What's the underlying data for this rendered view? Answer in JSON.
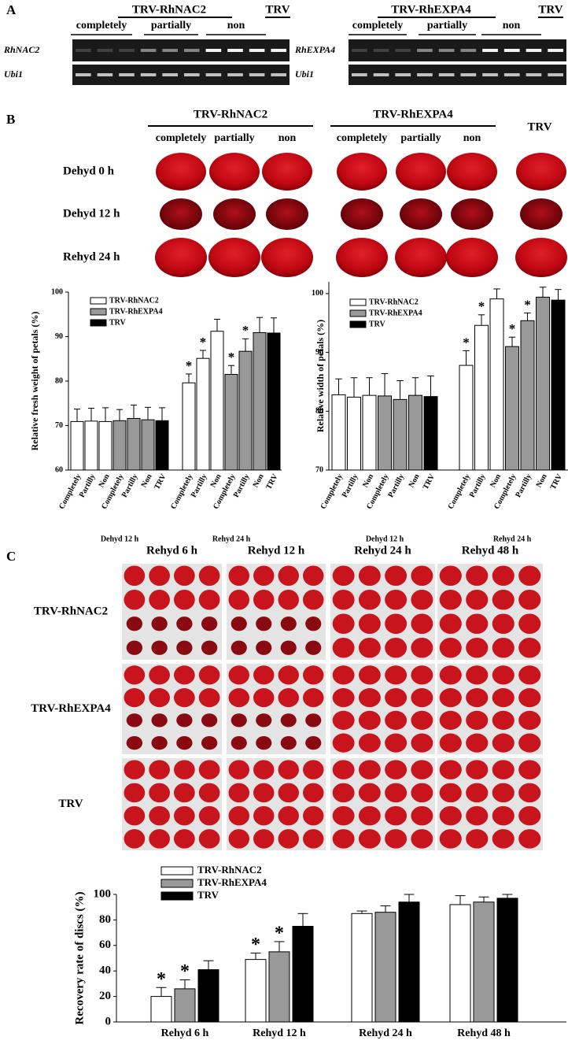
{
  "panel_a": {
    "letter": "A",
    "left": {
      "construct": "TRV-RhNAC2",
      "control": "TRV",
      "levels": [
        "completely",
        "partially",
        "non"
      ],
      "genes": [
        "RhNAC2",
        "Ubi1"
      ]
    },
    "right": {
      "construct": "TRV-RhEXPA4",
      "control": "TRV",
      "levels": [
        "completely",
        "partially",
        "non"
      ],
      "genes": [
        "RhEXPA4",
        "Ubi1"
      ]
    }
  },
  "panel_b": {
    "letter": "B",
    "groups": [
      {
        "construct": "TRV-RhNAC2",
        "levels": [
          "completely",
          "partially",
          "non"
        ]
      },
      {
        "construct": "TRV-RhEXPA4",
        "levels": [
          "completely",
          "partially",
          "non"
        ]
      }
    ],
    "control": "TRV",
    "stages": [
      "Dehyd 0 h",
      "Dehyd 12 h",
      "Rehyd 24 h"
    ]
  },
  "chart_data": [
    {
      "type": "bar",
      "ylabel": "Relative fresh weight of petals (%)",
      "ylim": [
        60,
        100
      ],
      "yticks": [
        60,
        70,
        80,
        90,
        100
      ],
      "categories": [
        "Completely",
        "Partilly",
        "Non",
        "Completely",
        "Partilly",
        "Non",
        "TRV",
        "Completely",
        "Partilly",
        "Non",
        "Completely",
        "Partilly",
        "Non",
        "TRV"
      ],
      "groups": [
        "Dehyd 12 h",
        "Rehyd 24 h"
      ],
      "legend": "top-left",
      "series": [
        {
          "name": "TRV-RhNAC2",
          "color": "#ffffff",
          "values": [
            70.9,
            71.0,
            70.9,
            null,
            null,
            null,
            null,
            79.6,
            85.1,
            91.2,
            null,
            null,
            null,
            null
          ],
          "errors": [
            2.8,
            2.9,
            3.1,
            null,
            null,
            null,
            null,
            2.0,
            1.8,
            2.7,
            null,
            null,
            null,
            null
          ],
          "significance": [
            null,
            null,
            null,
            null,
            null,
            null,
            null,
            "*",
            "*",
            null,
            null,
            null,
            null,
            null
          ]
        },
        {
          "name": "TRV-RhEXPA4",
          "color": "#999999",
          "values": [
            null,
            null,
            null,
            71.1,
            71.6,
            71.3,
            null,
            null,
            null,
            null,
            81.5,
            86.7,
            90.9,
            null
          ],
          "errors": [
            null,
            null,
            null,
            2.5,
            3.0,
            2.8,
            null,
            null,
            null,
            null,
            2.0,
            2.8,
            3.4,
            null
          ],
          "significance": [
            null,
            null,
            null,
            null,
            null,
            null,
            null,
            null,
            null,
            null,
            "*",
            "*",
            null,
            null
          ]
        },
        {
          "name": "TRV",
          "color": "#000000",
          "values": [
            null,
            null,
            null,
            null,
            null,
            null,
            71.1,
            null,
            null,
            null,
            null,
            null,
            null,
            90.8
          ],
          "errors": [
            null,
            null,
            null,
            null,
            null,
            null,
            2.9,
            null,
            null,
            null,
            null,
            null,
            null,
            3.4
          ],
          "significance": [
            null,
            null,
            null,
            null,
            null,
            null,
            null,
            null,
            null,
            null,
            null,
            null,
            null,
            null
          ]
        }
      ]
    },
    {
      "type": "bar",
      "ylabel": "Relative width of petals (%)",
      "ylim": [
        70,
        102
      ],
      "yticks": [
        70,
        80,
        90,
        100
      ],
      "categories": [
        "Completely",
        "Partilly",
        "Non",
        "Completely",
        "Partilly",
        "Non",
        "TRV",
        "Completely",
        "Partilly",
        "Non",
        "Completely",
        "Partilly",
        "Non",
        "TRV"
      ],
      "groups": [
        "Dehyd 12 h",
        "Rehyd 24 h"
      ],
      "legend": "top-left",
      "series": [
        {
          "name": "TRV-RhNAC2",
          "color": "#ffffff",
          "values": [
            82.8,
            82.4,
            82.7,
            null,
            null,
            null,
            null,
            87.8,
            94.6,
            99.1,
            null,
            null,
            null,
            null
          ],
          "errors": [
            2.7,
            3.3,
            3.0,
            null,
            null,
            null,
            null,
            2.5,
            1.8,
            1.7,
            null,
            null,
            null,
            null
          ],
          "significance": [
            null,
            null,
            null,
            null,
            null,
            null,
            null,
            "*",
            "*",
            null,
            null,
            null,
            null,
            null
          ]
        },
        {
          "name": "TRV-RhEXPA4",
          "color": "#999999",
          "values": [
            null,
            null,
            null,
            82.6,
            82.0,
            82.7,
            null,
            null,
            null,
            null,
            91.0,
            95.4,
            99.4,
            null
          ],
          "errors": [
            null,
            null,
            null,
            3.8,
            3.2,
            3.0,
            null,
            null,
            null,
            null,
            1.6,
            1.3,
            1.7,
            null
          ],
          "significance": [
            null,
            null,
            null,
            null,
            null,
            null,
            null,
            null,
            null,
            null,
            "*",
            "*",
            null,
            null
          ]
        },
        {
          "name": "TRV",
          "color": "#000000",
          "values": [
            null,
            null,
            null,
            null,
            null,
            null,
            82.5,
            null,
            null,
            null,
            null,
            null,
            null,
            98.9
          ],
          "errors": [
            null,
            null,
            null,
            null,
            null,
            null,
            3.5,
            null,
            null,
            null,
            null,
            null,
            null,
            1.8
          ],
          "significance": [
            null,
            null,
            null,
            null,
            null,
            null,
            null,
            null,
            null,
            null,
            null,
            null,
            null,
            null
          ]
        }
      ]
    },
    {
      "type": "bar",
      "ylabel": "Recovery rate of discs (%)",
      "ylim": [
        0,
        100
      ],
      "yticks": [
        0,
        20,
        40,
        60,
        80,
        100
      ],
      "categories": [
        "Rehyd 6 h",
        "Rehyd 12 h",
        "Rehyd 24 h",
        "Rehyd 48 h"
      ],
      "legend": "top-left",
      "series": [
        {
          "name": "TRV-RhNAC2",
          "color": "#ffffff",
          "values": [
            20,
            49,
            85,
            92
          ],
          "errors": [
            7,
            5,
            2,
            7
          ],
          "significance": [
            "*",
            "*",
            null,
            null
          ]
        },
        {
          "name": "TRV-RhEXPA4",
          "color": "#999999",
          "values": [
            26,
            55,
            86,
            94
          ],
          "errors": [
            7,
            8,
            5,
            4
          ],
          "significance": [
            "*",
            "*",
            null,
            null
          ]
        },
        {
          "name": "TRV",
          "color": "#000000",
          "values": [
            41,
            75,
            94,
            97
          ],
          "errors": [
            7,
            10,
            6,
            3
          ],
          "significance": [
            null,
            null,
            null,
            null
          ]
        }
      ]
    }
  ],
  "panel_c": {
    "letter": "C",
    "times": [
      "Rehyd 6 h",
      "Rehyd 12 h",
      "Rehyd 24 h",
      "Rehyd 48 h"
    ],
    "rows": [
      "TRV-RhNAC2",
      "TRV-RhEXPA4",
      "TRV"
    ]
  }
}
